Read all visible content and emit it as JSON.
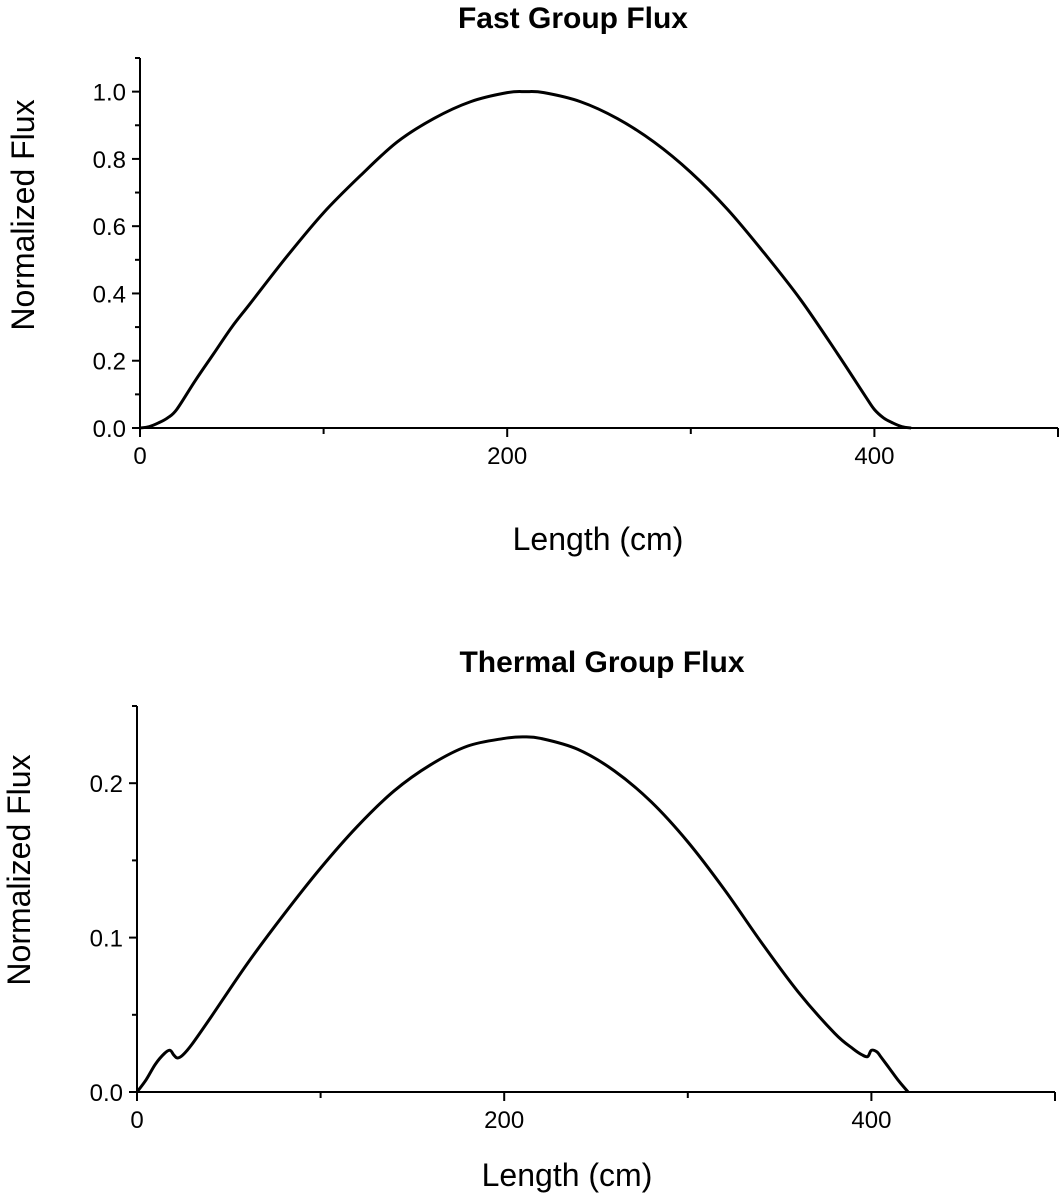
{
  "chart_data": [
    {
      "type": "line",
      "title": "Fast Group Flux",
      "xlabel": "Length (cm)",
      "ylabel": "Normalized Flux",
      "xlim": [
        0,
        500
      ],
      "ylim": [
        0,
        1.1
      ],
      "xticks": [
        0,
        200,
        400
      ],
      "xtick_labels": [
        "0",
        "200",
        "400"
      ],
      "yticks": [
        0.0,
        0.2,
        0.4,
        0.6,
        0.8,
        1.0
      ],
      "ytick_labels": [
        "0.0",
        "0.2",
        "0.4",
        "0.6",
        "0.8",
        "1.0"
      ],
      "grid": false,
      "legend": "none",
      "series": [
        {
          "color": "#000000",
          "x": [
            0,
            5,
            10,
            15,
            20,
            30,
            40,
            50,
            60,
            80,
            100,
            120,
            140,
            160,
            180,
            200,
            210,
            220,
            240,
            260,
            280,
            300,
            320,
            340,
            360,
            380,
            395,
            400,
            405,
            410,
            415,
            420
          ],
          "y": [
            0.0,
            0.004,
            0.015,
            0.03,
            0.055,
            0.14,
            0.22,
            0.3,
            0.37,
            0.51,
            0.64,
            0.75,
            0.85,
            0.92,
            0.97,
            0.997,
            1.0,
            0.997,
            0.97,
            0.92,
            0.85,
            0.76,
            0.65,
            0.52,
            0.38,
            0.22,
            0.095,
            0.055,
            0.03,
            0.015,
            0.004,
            0.0
          ]
        }
      ]
    },
    {
      "type": "line",
      "title": "Thermal Group Flux",
      "xlabel": "Length (cm)",
      "ylabel": "Normalized Flux",
      "xlim": [
        0,
        500
      ],
      "ylim": [
        0,
        0.25
      ],
      "xticks": [
        0,
        200,
        400
      ],
      "xtick_labels": [
        "0",
        "200",
        "400"
      ],
      "yticks": [
        0.0,
        0.1,
        0.2
      ],
      "ytick_labels": [
        "0.0",
        "0.1",
        "0.2"
      ],
      "grid": false,
      "legend": "none",
      "series": [
        {
          "color": "#000000",
          "x": [
            0,
            5,
            10,
            15,
            18,
            20,
            22,
            25,
            30,
            40,
            60,
            80,
            100,
            120,
            140,
            160,
            180,
            200,
            210,
            220,
            240,
            260,
            280,
            300,
            320,
            340,
            360,
            380,
            390,
            395,
            398,
            400,
            403,
            405,
            410,
            415,
            420
          ],
          "y": [
            0.0,
            0.008,
            0.018,
            0.025,
            0.027,
            0.024,
            0.022,
            0.024,
            0.031,
            0.048,
            0.083,
            0.115,
            0.145,
            0.172,
            0.195,
            0.212,
            0.224,
            0.229,
            0.23,
            0.229,
            0.222,
            0.208,
            0.188,
            0.162,
            0.131,
            0.097,
            0.065,
            0.038,
            0.028,
            0.024,
            0.023,
            0.027,
            0.026,
            0.023,
            0.015,
            0.007,
            0.0
          ]
        }
      ]
    }
  ]
}
